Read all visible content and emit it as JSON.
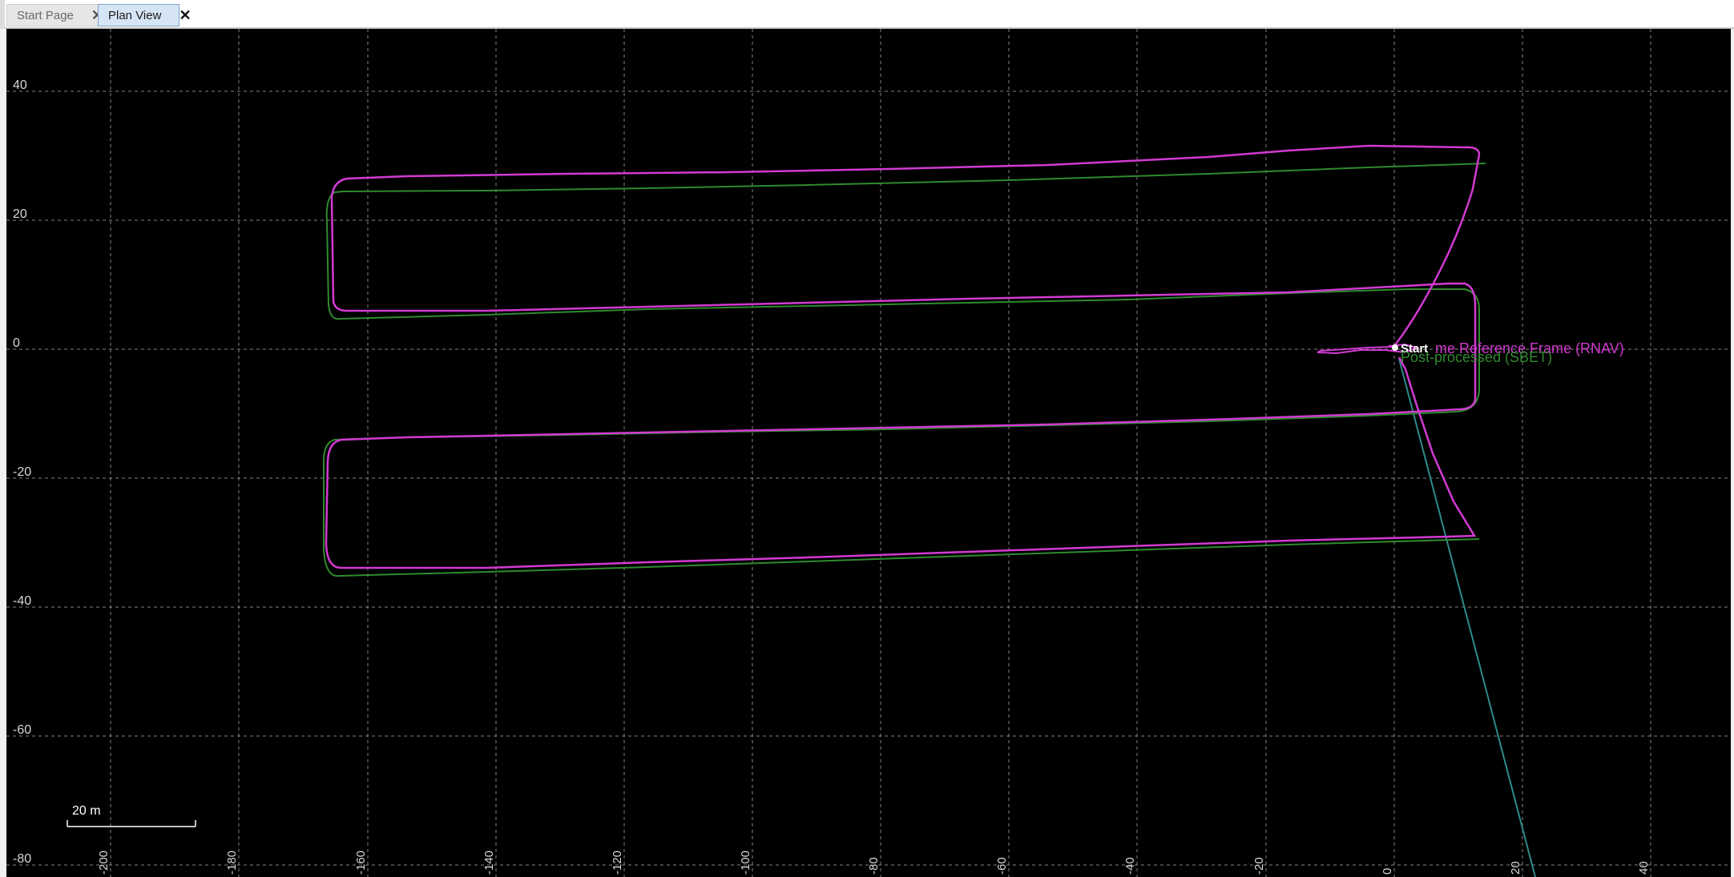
{
  "tabs": [
    {
      "label": "Start Page",
      "close": "✕"
    },
    {
      "label": "Plan View",
      "close": "✕"
    }
  ],
  "plan_view": {
    "y_axis_labels": [
      "40",
      "20",
      "0",
      "-20",
      "-40",
      "-60",
      "-80"
    ],
    "x_axis_labels": [
      "-200",
      "-180",
      "-160",
      "-140",
      "-120",
      "-100",
      "-80",
      "-60",
      "-40",
      "-20",
      "0",
      "20",
      "40"
    ],
    "scale_bar_label": "20 m",
    "start_marker_label": "Start",
    "legend": {
      "rnav_label": "me Reference Frame (RNAV)",
      "sbet_label": "Post-processed (SBET)"
    },
    "colors": {
      "rnav": "#d23ad2",
      "sbet": "#2f8a2f",
      "heading_line": "#2e8a8a"
    }
  }
}
